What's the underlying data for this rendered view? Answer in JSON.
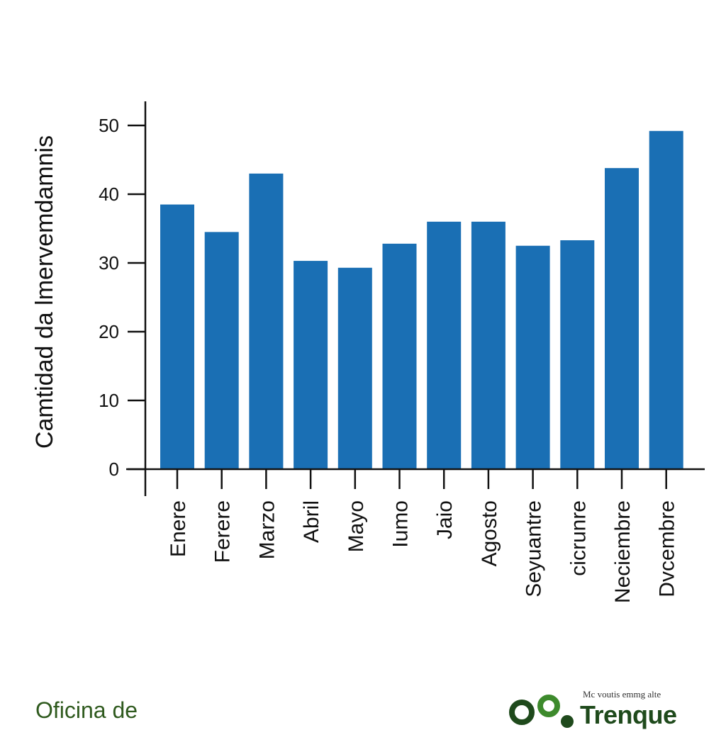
{
  "chart_data": {
    "type": "bar",
    "ylabel": "Camtidad da lmervemdamnis",
    "categories": [
      "Enere",
      "Ferere",
      "Marzo",
      "Abril",
      "Mayo",
      "Iumo",
      "Jaio",
      "Agosto",
      "Seyuantre",
      "cicrunre",
      "Neciembre",
      "Dvcembre"
    ],
    "values": [
      38.5,
      34.5,
      43,
      30.3,
      29.3,
      32.8,
      36,
      36,
      32.5,
      33.3,
      43.8,
      49.2
    ],
    "yticks": [
      0,
      10,
      20,
      30,
      40,
      50
    ],
    "ylim": [
      0,
      53
    ],
    "grid": false,
    "bar_color": "#1a6fb4"
  },
  "footer": {
    "left_text": "Oficina de",
    "logo_tagline": "Mc voutis emmg alte",
    "logo_word": "Trenque",
    "logo_color": "#1f4a1c"
  }
}
